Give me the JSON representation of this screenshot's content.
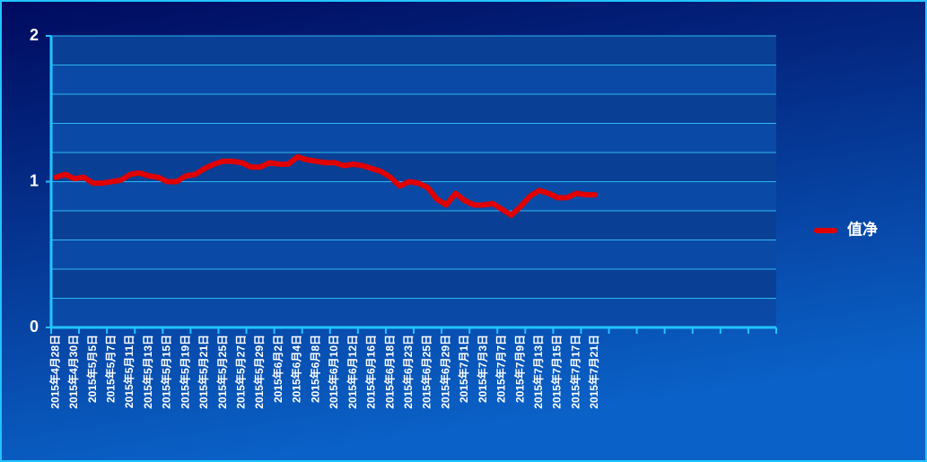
{
  "chart_data": {
    "type": "line",
    "categories": [
      "2015年4月28日",
      null,
      "2015年4月30日",
      null,
      "2015年5月5日",
      null,
      "2015年5月7日",
      null,
      "2015年5月11日",
      null,
      "2015年5月13日",
      null,
      "2015年5月15日",
      null,
      "2015年5月19日",
      null,
      "2015年5月21日",
      null,
      "2015年5月25日",
      null,
      "2015年5月27日",
      null,
      "2015年5月29日",
      null,
      "2015年6月2日",
      null,
      "2015年6月4日",
      null,
      "2015年6月8日",
      null,
      "2015年6月10日",
      null,
      "2015年6月12日",
      null,
      "2015年6月16日",
      null,
      "2015年6月18日",
      null,
      "2015年6月23日",
      null,
      "2015年6月25日",
      null,
      "2015年6月29日",
      null,
      "2015年7月1日",
      null,
      "2015年7月3日",
      null,
      "2015年7月7日",
      null,
      "2015年7月9日",
      null,
      "2015年7月13日",
      null,
      "2015年7月15日",
      null,
      "2015年7月17日",
      null,
      "2015年7月21日",
      null,
      null,
      null,
      null,
      null,
      null,
      null,
      null,
      null,
      null,
      null,
      null,
      null,
      null,
      null,
      null,
      null,
      null,
      null
    ],
    "series": [
      {
        "name": "值净",
        "color": "#e00000",
        "values": [
          1.03,
          1.05,
          1.02,
          1.03,
          0.99,
          0.99,
          1.0,
          1.01,
          1.05,
          1.06,
          1.04,
          1.03,
          1.0,
          1.0,
          1.04,
          1.05,
          1.09,
          1.12,
          1.14,
          1.14,
          1.13,
          1.1,
          1.1,
          1.13,
          1.12,
          1.12,
          1.17,
          1.15,
          1.14,
          1.13,
          1.13,
          1.11,
          1.12,
          1.11,
          1.09,
          1.07,
          1.03,
          0.97,
          1.0,
          0.99,
          0.96,
          0.88,
          0.84,
          0.92,
          0.87,
          0.84,
          0.84,
          0.85,
          0.81,
          0.77,
          0.83,
          0.9,
          0.94,
          0.92,
          0.89,
          0.89,
          0.92,
          0.91,
          0.91,
          null,
          null,
          null,
          null,
          null,
          null,
          null,
          null,
          null,
          null,
          null,
          null,
          null,
          null,
          null,
          null,
          null,
          null,
          null
        ]
      }
    ],
    "ylim": [
      0,
      2
    ],
    "yticks": [
      0,
      1,
      2
    ],
    "y_gridlines": [
      0.2,
      0.4,
      0.6,
      0.8,
      1,
      1.2,
      1.4,
      1.6,
      1.8,
      2
    ],
    "grid": true,
    "legend": "right"
  }
}
